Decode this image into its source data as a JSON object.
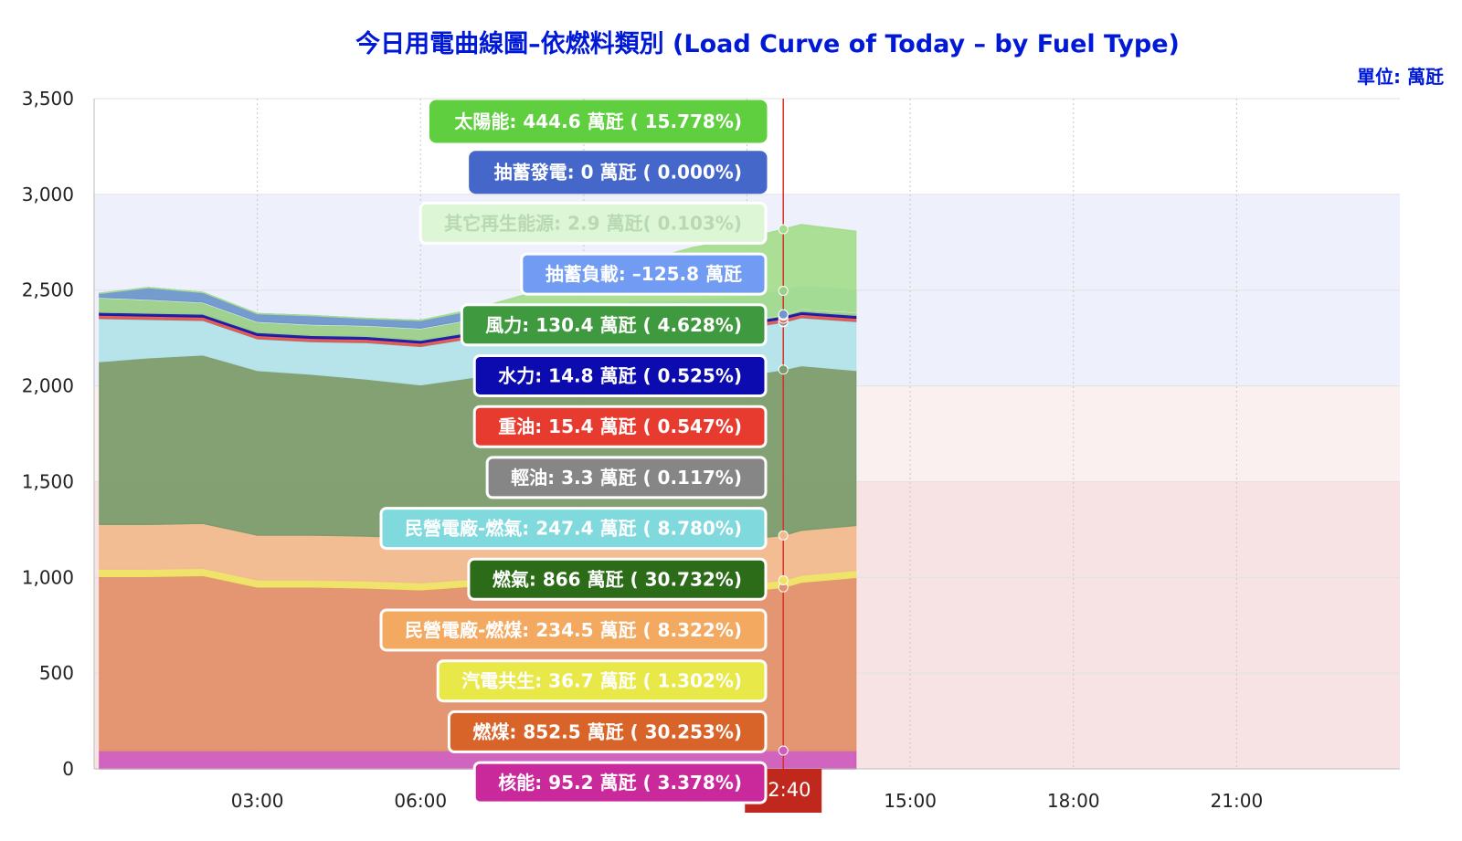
{
  "chart_data": {
    "type": "area",
    "title": "今日用電曲線圖–依燃料類別 (Load Curve of Today – by Fuel Type)",
    "unit": "單位: 萬瓩",
    "ylim": [
      0,
      3500
    ],
    "y_ticks": [
      0,
      500,
      1000,
      1500,
      2000,
      2500,
      3000,
      3500
    ],
    "y_tick_labels": [
      "0",
      "500",
      "1,000",
      "1,500",
      "2,000",
      "2,500",
      "3,000",
      "3,500"
    ],
    "x_ticks": [
      "03:00",
      "06:00",
      "15:00",
      "18:00",
      "21:00"
    ],
    "x_tick_hours": [
      3,
      6,
      15,
      18,
      21
    ],
    "x_range_hours": [
      0,
      24
    ],
    "cursor_time_label": "12:40",
    "cursor_hour": 12.667,
    "grid": true,
    "bands": [
      {
        "from": 0,
        "to": 1500,
        "color": "#f7e3e3"
      },
      {
        "from": 1500,
        "to": 2000,
        "color": "#fbf0f0"
      },
      {
        "from": 2000,
        "to": 3000,
        "color": "#eef0fb"
      }
    ],
    "x_hours": [
      0.1,
      1,
      2,
      3,
      4,
      5,
      6,
      7,
      8,
      9,
      10,
      11,
      12,
      12.667,
      13,
      14
    ],
    "series": [
      {
        "name": "核能",
        "color": "#cf5dbd",
        "values": [
          95,
          95,
          95,
          95,
          95,
          95,
          95,
          95,
          95,
          95,
          95,
          95,
          95,
          95.2,
          95,
          95
        ]
      },
      {
        "name": "燃煤",
        "color": "#e2916a",
        "values": [
          910,
          910,
          915,
          855,
          855,
          850,
          840,
          860,
          870,
          880,
          860,
          840,
          835,
          852.5,
          880,
          905
        ]
      },
      {
        "name": "汽電共生",
        "color": "#eee364",
        "values": [
          38,
          38,
          38,
          37,
          37,
          37,
          37,
          37,
          37,
          37,
          37,
          37,
          37,
          36.7,
          37,
          37
        ]
      },
      {
        "name": "民營電廠-燃煤",
        "color": "#f2bb8f",
        "values": [
          234,
          234,
          234,
          234,
          234,
          234,
          234,
          234,
          234,
          234,
          234,
          234,
          234,
          234.5,
          234,
          234
        ]
      },
      {
        "name": "燃氣",
        "color": "#7c9c6c",
        "values": [
          850,
          870,
          880,
          860,
          840,
          820,
          800,
          820,
          820,
          810,
          830,
          840,
          855,
          866,
          860,
          810
        ]
      },
      {
        "name": "民營電廠-燃氣",
        "color": "#b3e3ea",
        "values": [
          225,
          200,
          180,
          165,
          170,
          190,
          200,
          205,
          215,
          225,
          240,
          245,
          247,
          247.4,
          250,
          255
        ]
      },
      {
        "name": "輕油",
        "color": "#8c8c8c",
        "values": [
          3,
          3,
          3,
          3,
          3,
          3,
          3,
          3,
          3,
          3,
          3,
          3,
          3,
          3.3,
          3,
          3
        ]
      },
      {
        "name": "重油",
        "color": "#e8574f",
        "values": [
          15,
          15,
          15,
          15,
          15,
          15,
          15,
          15,
          15,
          15,
          15,
          15,
          15,
          15.4,
          15,
          15
        ]
      },
      {
        "name": "水力",
        "color": "#1a1aa6",
        "values": [
          15,
          15,
          15,
          15,
          15,
          15,
          15,
          15,
          15,
          15,
          15,
          15,
          15,
          14.8,
          15,
          15
        ]
      },
      {
        "name": "風力",
        "color": "#9ccf8a",
        "values": [
          75,
          70,
          60,
          55,
          55,
          55,
          60,
          65,
          75,
          90,
          110,
          120,
          128,
          130.4,
          130,
          130
        ]
      },
      {
        "name": "抽蓄負載",
        "color": "#8ab0e8",
        "values": [
          0,
          0,
          0,
          0,
          0,
          0,
          0,
          0,
          -10,
          -60,
          -110,
          -120,
          -125,
          -125.8,
          -120,
          -115
        ]
      },
      {
        "name": "其它再生能源",
        "color": "#d8f5d4",
        "values": [
          3,
          3,
          3,
          3,
          3,
          3,
          3,
          3,
          3,
          3,
          3,
          3,
          3,
          2.9,
          3,
          3
        ]
      },
      {
        "name": "抽蓄發電",
        "color": "#6f97cc",
        "values": [
          20,
          60,
          50,
          40,
          45,
          35,
          40,
          45,
          50,
          30,
          10,
          5,
          0,
          0,
          0,
          0
        ]
      },
      {
        "name": "太陽能",
        "color": "#a5dd8f",
        "values": [
          0,
          0,
          0,
          0,
          0,
          0,
          0,
          5,
          60,
          180,
          300,
          390,
          430,
          444.6,
          440,
          420
        ]
      }
    ],
    "tooltip": [
      {
        "label": "太陽能: 444.6 萬瓩 ( 15.778%)",
        "bg": "#5fcf3f",
        "fg": "#ffffff",
        "border": "#5fcf3f"
      },
      {
        "label": "抽蓄發電: 0 萬瓩 ( 0.000%)",
        "bg": "#4467c9",
        "fg": "#ffffff",
        "border": "#4467c9"
      },
      {
        "label": "其它再生能源: 2.9 萬瓩( 0.103%)",
        "bg": "#ddf7d6",
        "fg": "#b8d9b2",
        "border": "#ffffff"
      },
      {
        "label": "抽蓄負載: –125.8 萬瓩",
        "bg": "#729cf4",
        "fg": "#ffffff",
        "border": "#ffffff"
      },
      {
        "label": "風力: 130.4 萬瓩 ( 4.628%)",
        "bg": "#3f9a3f",
        "fg": "#ffffff",
        "border": "#ffffff"
      },
      {
        "label": "水力: 14.8 萬瓩 ( 0.525%)",
        "bg": "#0b0bb0",
        "fg": "#ffffff",
        "border": "#ffffff"
      },
      {
        "label": "重油: 15.4 萬瓩 ( 0.547%)",
        "bg": "#e83b30",
        "fg": "#ffffff",
        "border": "#ffffff"
      },
      {
        "label": "輕油: 3.3 萬瓩 ( 0.117%)",
        "bg": "#868686",
        "fg": "#ffffff",
        "border": "#ffffff"
      },
      {
        "label": "民營電廠-燃氣: 247.4 萬瓩 ( 8.780%)",
        "bg": "#7fd9dd",
        "fg": "#ffffff",
        "border": "#ffffff"
      },
      {
        "label": "燃氣: 866 萬瓩 ( 30.732%)",
        "bg": "#2c6b17",
        "fg": "#ffffff",
        "border": "#ffffff"
      },
      {
        "label": "民營電廠-燃煤: 234.5 萬瓩 ( 8.322%)",
        "bg": "#f3a95f",
        "fg": "#ffffff",
        "border": "#ffffff"
      },
      {
        "label": "汽電共生: 36.7 萬瓩 ( 1.302%)",
        "bg": "#e9e849",
        "fg": "#ffffff",
        "border": "#ffffff"
      },
      {
        "label": "燃煤: 852.5 萬瓩 ( 30.253%)",
        "bg": "#d9642a",
        "fg": "#ffffff",
        "border": "#ffffff"
      },
      {
        "label": "核能: 95.2 萬瓩 ( 3.378%)",
        "bg": "#c9299a",
        "fg": "#ffffff",
        "border": "#ffffff"
      }
    ]
  }
}
